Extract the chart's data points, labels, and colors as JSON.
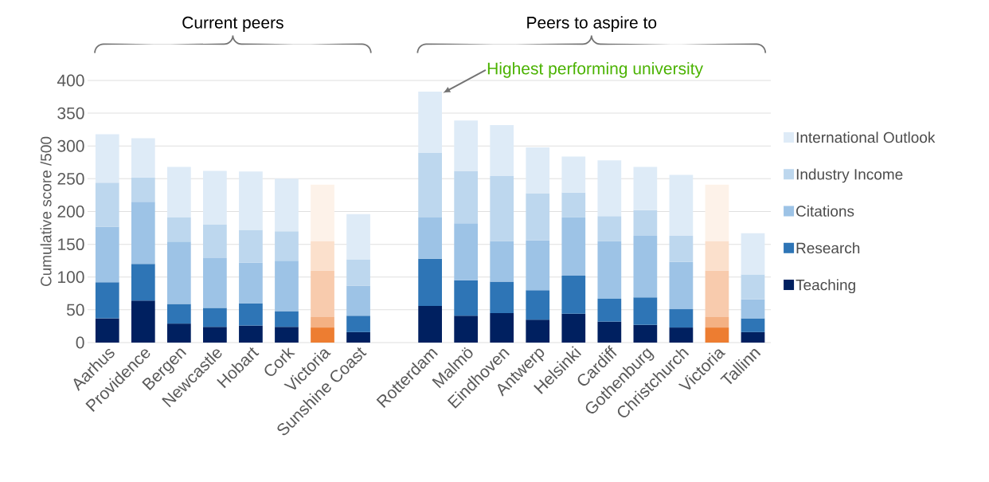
{
  "chart_data": {
    "type": "bar",
    "stacked": true,
    "ylabel": "Cumulative score /500",
    "categories": [
      "Aarhus",
      "Providence",
      "Bergen",
      "Newcastle",
      "Hobart",
      "Cork",
      "Victoria",
      "Sunshine Coast",
      null,
      "Rotterdam",
      "Malmö",
      "Eindhoven",
      "Antwerp",
      "Helsinki",
      "Cardiff",
      "Gothenburg",
      "Christchurch",
      "Victoria",
      "Tallinn"
    ],
    "series": [
      {
        "name": "Teaching",
        "color": "#002060",
        "colors": [
          "#002060",
          "#002060",
          "#002060",
          "#002060",
          "#002060",
          "#002060",
          "#ed7d31",
          "#002060",
          "#002060",
          "#002060",
          "#002060",
          "#002060",
          "#002060",
          "#002060",
          "#002060",
          "#002060",
          "#002060",
          "#ed7d31",
          "#002060"
        ],
        "values": [
          37,
          64,
          29,
          24,
          26,
          24,
          23,
          16,
          null,
          56,
          41,
          45,
          35,
          44,
          32,
          27,
          23,
          23,
          16
        ]
      },
      {
        "name": "Research",
        "color": "#2e75b6",
        "colors": [
          "#2e75b6",
          "#2e75b6",
          "#2e75b6",
          "#2e75b6",
          "#2e75b6",
          "#2e75b6",
          "#f4b183",
          "#2e75b6",
          "#2e75b6",
          "#2e75b6",
          "#2e75b6",
          "#2e75b6",
          "#2e75b6",
          "#2e75b6",
          "#2e75b6",
          "#2e75b6",
          "#2e75b6",
          "#f4b183",
          "#2e75b6"
        ],
        "values": [
          55,
          56,
          30,
          29,
          34,
          24,
          16,
          25,
          null,
          72,
          54,
          48,
          45,
          58,
          35,
          42,
          28,
          16,
          21
        ]
      },
      {
        "name": "Citations",
        "color": "#9dc3e6",
        "colors": [
          "#9dc3e6",
          "#9dc3e6",
          "#9dc3e6",
          "#9dc3e6",
          "#9dc3e6",
          "#9dc3e6",
          "#f8cbad",
          "#9dc3e6",
          "#9dc3e6",
          "#9dc3e6",
          "#9dc3e6",
          "#9dc3e6",
          "#9dc3e6",
          "#9dc3e6",
          "#9dc3e6",
          "#9dc3e6",
          "#9dc3e6",
          "#f8cbad",
          "#9dc3e6"
        ],
        "values": [
          85,
          95,
          95,
          76,
          62,
          77,
          71,
          46,
          null,
          63,
          87,
          62,
          76,
          89,
          88,
          94,
          72,
          71,
          29
        ]
      },
      {
        "name": "Industry Income",
        "color": "#bdd7ee",
        "colors": [
          "#bdd7ee",
          "#bdd7ee",
          "#bdd7ee",
          "#bdd7ee",
          "#bdd7ee",
          "#bdd7ee",
          "#fbe0cc",
          "#bdd7ee",
          "#bdd7ee",
          "#bdd7ee",
          "#bdd7ee",
          "#bdd7ee",
          "#bdd7ee",
          "#bdd7ee",
          "#bdd7ee",
          "#bdd7ee",
          "#bdd7ee",
          "#fbe0cc",
          "#bdd7ee"
        ],
        "values": [
          67,
          37,
          37,
          51,
          50,
          45,
          45,
          40,
          null,
          99,
          80,
          99,
          72,
          38,
          38,
          39,
          40,
          45,
          38
        ]
      },
      {
        "name": "International Outlook",
        "color": "#deebf7",
        "colors": [
          "#deebf7",
          "#deebf7",
          "#deebf7",
          "#deebf7",
          "#deebf7",
          "#deebf7",
          "#fdf2e9",
          "#deebf7",
          "#deebf7",
          "#deebf7",
          "#deebf7",
          "#deebf7",
          "#deebf7",
          "#deebf7",
          "#deebf7",
          "#deebf7",
          "#deebf7",
          "#fdf2e9",
          "#deebf7"
        ],
        "values": [
          74,
          60,
          77,
          82,
          89,
          80,
          86,
          69,
          null,
          93,
          77,
          78,
          70,
          55,
          85,
          66,
          93,
          86,
          63
        ]
      }
    ],
    "ylim": [
      0,
      400
    ],
    "yticks": [
      0,
      50,
      100,
      150,
      200,
      250,
      300,
      350,
      400
    ],
    "grid": "y",
    "legend": "right",
    "annotations": [
      "Current peers",
      "Peers to aspire to",
      "Highest performing university"
    ]
  }
}
